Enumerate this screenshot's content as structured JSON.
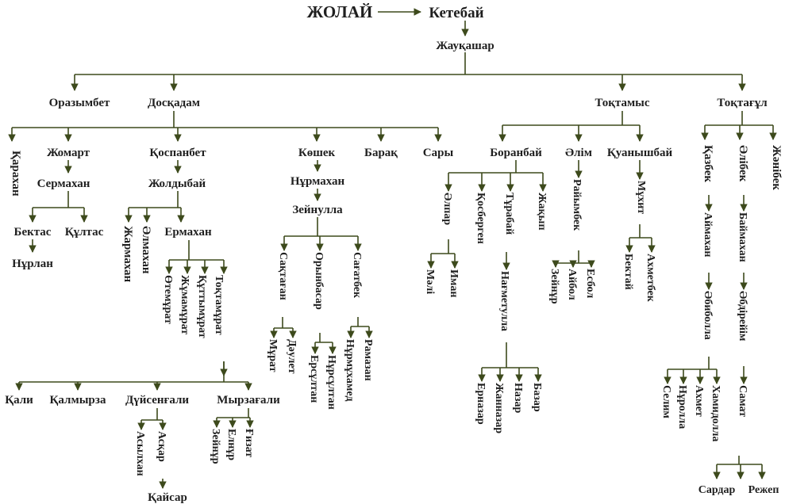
{
  "colors": {
    "line": "#3d4a1c",
    "text": "#1f1f1f",
    "background": "#ffffff"
  },
  "nodes": {
    "zholai": "ЖОЛАЙ",
    "ketebai": "Кетебай",
    "zhaukashar": "Жауқашар",
    "orazymbet": "Оразымбет",
    "doskadam": "Досқадам",
    "toktamys": "Тоқтамыс",
    "toktagul": "Тоқтағұл",
    "karakhan": "Қарахан",
    "zhomart": "Жомарт",
    "kospanbet": "Қоспанбет",
    "koshek": "Көшек",
    "barak": "Барақ",
    "sary": "Сары",
    "boranbai": "Боранбай",
    "alim": "Әлім",
    "kuanyshbai": "Қуанышбай",
    "kazbek": "Қазбек",
    "albek": "Әлібек",
    "zhanibek": "Жәнібек",
    "sermakhan": "Сермахан",
    "bektas": "Бектас",
    "kultas": "Құлтас",
    "nurlan": "Нұрлан",
    "zholdybai": "Жолдыбай",
    "zharmakhan": "Жармахан",
    "almakhan": "Әлмахан",
    "ermakhan": "Ермахан",
    "otemurat": "Өтемұрат",
    "zhumamurat": "Жұмамұрат",
    "kuttymurat": "Құттымұрат",
    "toktamurat": "Тоқтамұрат",
    "kali": "Қали",
    "kalmyrza": "Қалмырза",
    "duisengali": "Дүйсенғали",
    "myrzagali": "Мырзағали",
    "asylkhan": "Асылхан",
    "askar": "Асқар",
    "kaisar": "Қайсар",
    "zeinur": "Зейнұр",
    "elnur": "Елнұр",
    "gizat": "Ғизат",
    "nurmakhan": "Нұрмахан",
    "zeinulla": "Зейнулла",
    "saktagan": "Сақтаған",
    "orynbasar": "Орынбасар",
    "sagatbek": "Сағатбек",
    "murat": "Мұрат",
    "daulet": "Дәулет",
    "ersultan": "Ерсұлтан",
    "nursultan": "Нұрсұлтан",
    "nurmukhamed": "Нұрмұхамед",
    "ramazan": "Рамазан",
    "alpar": "Әлпар",
    "kosbergen": "Қосберген",
    "turabai": "Тұрабай",
    "zhakyp": "Жақып",
    "mali": "Мәлі",
    "iman": "Иман",
    "nagmetulla": "Нағметулла",
    "ernazar": "Ерназар",
    "zhannazar": "Жанназар",
    "nazar": "Назар",
    "bazar": "Базар",
    "raiymbek": "Райымбек",
    "zeinur2": "Зейнұр",
    "aibol": "Айбол",
    "esbol": "Есбол",
    "mukhit": "Мұхит",
    "bektai": "Бектай",
    "akhmetbek": "Ахметбек",
    "aimakhan": "Аймахан",
    "abiboldy": "Әбиболла",
    "selim": "Селим",
    "nurolla": "Нұролла",
    "akhmet": "Ахмет",
    "khamidolla": "Хамидолла",
    "sardar": "Сардар",
    "rezhep": "Режеп",
    "baimakhan": "Баймахан",
    "abdiraim": "Әбдірейім",
    "samat": "Самат"
  }
}
